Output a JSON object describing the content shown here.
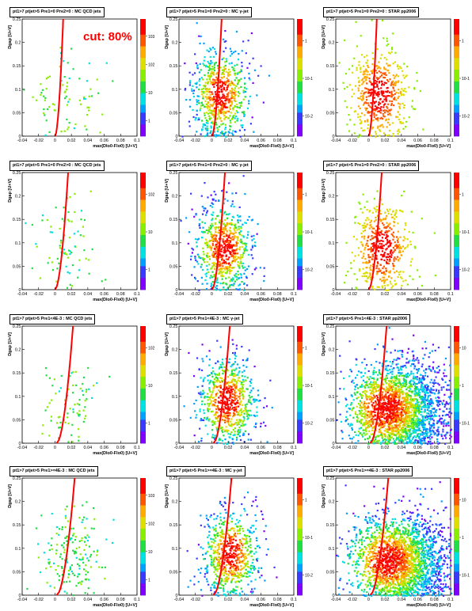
{
  "annotation": "cut: 80%",
  "xlabel": "max(D_{lo0}-F_{lo0}) [U+V]",
  "ylabel": "D_{gap} [U+V]",
  "xlim": [
    -0.04,
    0.1
  ],
  "ylim": [
    0,
    0.25
  ],
  "x_ticks": [
    "-0.04",
    "-0.02",
    "0",
    "0.02",
    "0.04",
    "0.06",
    "0.08",
    "0.1"
  ],
  "y_ticks": [
    "0",
    "0.05",
    "0.1",
    "0.15",
    "0.2",
    "0.25"
  ],
  "chart_data": [
    {
      "type": "heatmap",
      "title": "pt_{1}>7 pt_{jet}>5 Pre_{1}=0 Pre_{2}=0 : MC QCD jets",
      "cut_curve_x0": 0.004,
      "cut_curve_x1": 0.01,
      "z_log": true,
      "z_ticks": [
        "1",
        "10",
        "10^{2}",
        "10^{3}"
      ]
    },
    {
      "type": "heatmap",
      "title": "pt_{1}>7 pt_{jet}>5 Pre_{1}=0 Pre_{2}=0 : MC γ-jet",
      "cut_curve_x0": 0.004,
      "cut_curve_x1": 0.012,
      "z_log": true,
      "z_ticks": [
        "10^{-2}",
        "10^{-1}",
        "1"
      ]
    },
    {
      "type": "heatmap",
      "title": "pt_{1}>7 pt_{jet}>5 Pre_{1}=0 Pre_{2}=0 : STAR pp2006",
      "cut_curve_x0": 0.004,
      "cut_curve_x1": 0.01,
      "z_log": true,
      "z_ticks": [
        "10^{-2}",
        "10^{-1}",
        "1"
      ]
    },
    {
      "type": "heatmap",
      "title": "pt_{1}>7 pt_{jet}>5 Pre_{1}=0 Pre_{2}>0 : MC QCD jets",
      "cut_curve_x0": 0.004,
      "cut_curve_x1": 0.016,
      "z_log": true,
      "z_ticks": [
        "1",
        "10",
        "10^{2}"
      ]
    },
    {
      "type": "heatmap",
      "title": "pt_{1}>7 pt_{jet}>5 Pre_{1}=0 Pre_{2}>0 : MC γ-jet",
      "cut_curve_x0": 0.004,
      "cut_curve_x1": 0.016,
      "z_log": true,
      "z_ticks": [
        "10^{-2}",
        "10^{-1}",
        "1"
      ]
    },
    {
      "type": "heatmap",
      "title": "pt_{1}>7 pt_{jet}>5 Pre_{1}=0 Pre_{2}>0 : STAR pp2006",
      "cut_curve_x0": 0.004,
      "cut_curve_x1": 0.016,
      "z_log": true,
      "z_ticks": [
        "10^{-2}",
        "10^{-1}",
        "1"
      ]
    },
    {
      "type": "heatmap",
      "title": "pt_{1}>7 pt_{jet}>5 Pre_{1}<4E-3 : MC QCD jets",
      "cut_curve_x0": 0.006,
      "cut_curve_x1": 0.022,
      "z_log": true,
      "z_ticks": [
        "1",
        "10",
        "10^{2}"
      ]
    },
    {
      "type": "heatmap",
      "title": "pt_{1}>7 pt_{jet}>5 Pre_{1}<4E-3 : MC γ-jet",
      "cut_curve_x0": 0.006,
      "cut_curve_x1": 0.022,
      "z_log": true,
      "z_ticks": [
        "10^{-2}",
        "10^{-1}",
        "1"
      ]
    },
    {
      "type": "heatmap",
      "title": "pt_{1}>7 pt_{jet}>5 Pre_{1}<4E-3 : STAR pp2006",
      "cut_curve_x0": 0.006,
      "cut_curve_x1": 0.022,
      "z_log": true,
      "z_ticks": [
        "10^{-1}",
        "1",
        "10"
      ]
    },
    {
      "type": "heatmap",
      "title": "pt_{1}>7 pt_{jet}>5 Pre_{1}>=4E-3 : MC QCD jets",
      "cut_curve_x0": 0.006,
      "cut_curve_x1": 0.024,
      "z_log": true,
      "z_ticks": [
        "1",
        "10",
        "10^{2}",
        "10^{3}"
      ]
    },
    {
      "type": "heatmap",
      "title": "pt_{1}>7 pt_{jet}>5 Pre_{1}>=4E-3 : MC γ-jet",
      "cut_curve_x0": 0.006,
      "cut_curve_x1": 0.024,
      "z_log": true,
      "z_ticks": [
        "10^{-2}",
        "10^{-1}",
        "1"
      ]
    },
    {
      "type": "heatmap",
      "title": "pt_{1}>7 pt_{jet}>5 Pre_{1}>=4E-3 : STAR pp2006",
      "cut_curve_x0": 0.006,
      "cut_curve_x1": 0.024,
      "z_log": true,
      "z_ticks": [
        "10^{-1}",
        "1",
        "10"
      ]
    }
  ]
}
